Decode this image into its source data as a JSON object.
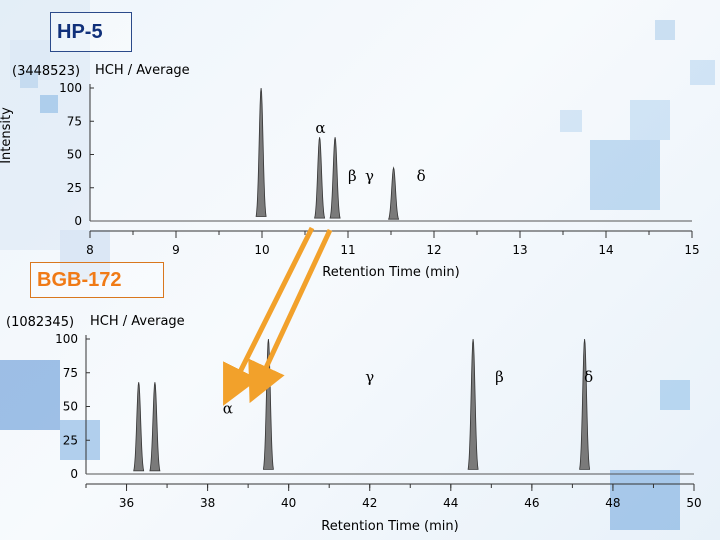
{
  "panels": {
    "top": {
      "label": "HP-5",
      "count": "(3448523)",
      "compound": "HCH / Average",
      "ylabel": "Intensity",
      "xlabel": "Retention Time (min)"
    },
    "bottom": {
      "label": "BGB-172",
      "count": "(1082345)",
      "compound": "HCH / Average",
      "xlabel": "Retention Time (min)"
    }
  },
  "chart_data": [
    {
      "type": "line",
      "panel": "HP-5",
      "x_ticks": [
        8,
        9,
        10,
        11,
        12,
        13,
        14,
        15
      ],
      "y_ticks": [
        0,
        25,
        50,
        75,
        100
      ],
      "xlim": [
        8,
        15
      ],
      "ylim": [
        0,
        100
      ],
      "peaks": [
        {
          "x": 9.99,
          "y": 100,
          "label": ""
        },
        {
          "x": 10.67,
          "y": 63,
          "label": "α"
        },
        {
          "x": 10.85,
          "y": 63,
          "label": ""
        },
        {
          "x": 11.53,
          "y": 40,
          "label": ""
        }
      ],
      "annotations": [
        {
          "text": "α",
          "x": 10.68,
          "y": 66
        },
        {
          "text": "β",
          "x": 11.05,
          "y": 30
        },
        {
          "text": "γ",
          "x": 11.25,
          "y": 30
        },
        {
          "text": "δ",
          "x": 11.85,
          "y": 30
        }
      ]
    },
    {
      "type": "line",
      "panel": "BGB-172",
      "x_ticks": [
        36,
        38,
        40,
        42,
        44,
        46,
        48,
        50
      ],
      "y_ticks": [
        0,
        25,
        50,
        75,
        100
      ],
      "xlim": [
        35,
        50
      ],
      "ylim": [
        0,
        100
      ],
      "peaks": [
        {
          "x": 36.3,
          "y": 68,
          "label": ""
        },
        {
          "x": 36.7,
          "y": 68,
          "label": ""
        },
        {
          "x": 39.5,
          "y": 100,
          "label": ""
        },
        {
          "x": 44.55,
          "y": 100,
          "label": ""
        },
        {
          "x": 47.3,
          "y": 100,
          "label": ""
        }
      ],
      "annotations": [
        {
          "text": "γ",
          "x": 42.0,
          "y": 68
        },
        {
          "text": "β",
          "x": 45.2,
          "y": 68
        },
        {
          "text": "δ",
          "x": 47.4,
          "y": 68
        },
        {
          "text": "α",
          "x": 38.5,
          "y": 45
        }
      ]
    }
  ],
  "arrows_color": "#f2a12b"
}
